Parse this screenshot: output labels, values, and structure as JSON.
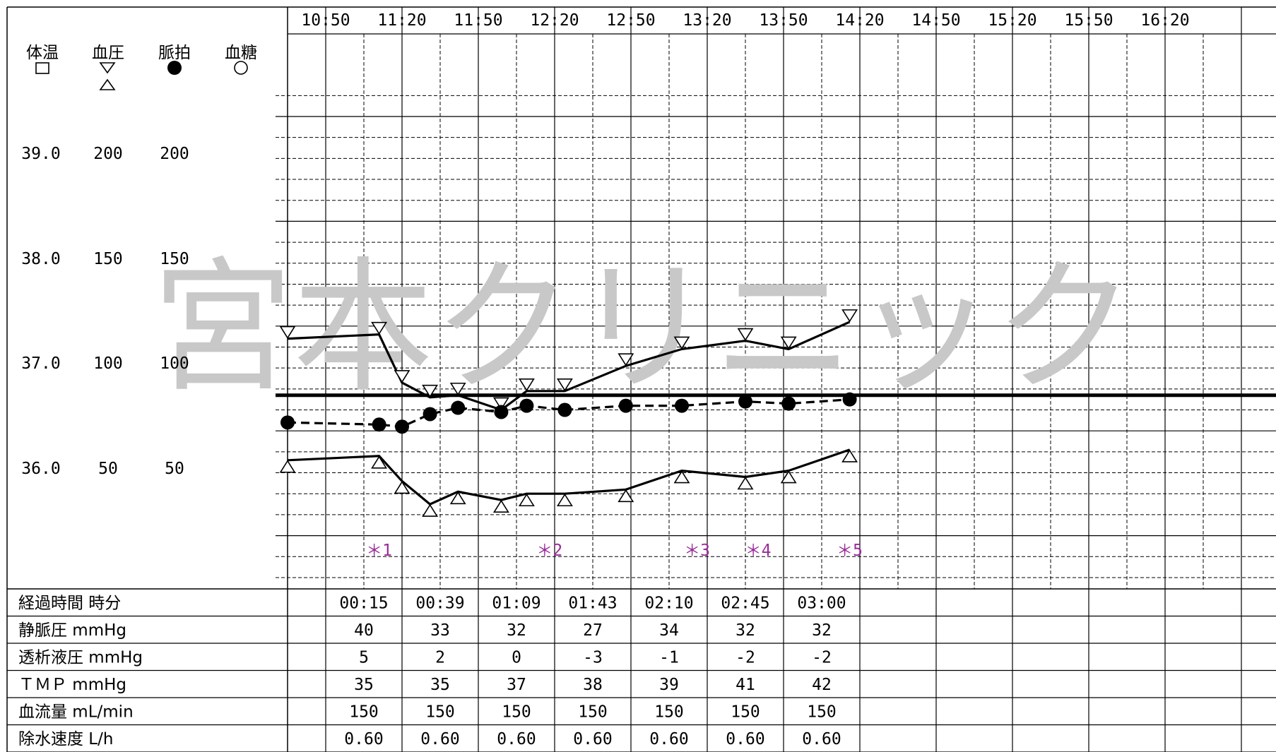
{
  "watermark": "宮本クリニック",
  "legend": [
    {
      "label": "体温",
      "symbol": "square-open-icon"
    },
    {
      "label": "血圧",
      "symbol": "triangle-down-and-up-open-icon"
    },
    {
      "label": "脈拍",
      "symbol": "circle-filled-icon"
    },
    {
      "label": "血糖",
      "symbol": "circle-open-icon"
    }
  ],
  "scale_labels": [
    {
      "temp": "39.0",
      "bp": "200",
      "pulse": "200"
    },
    {
      "temp": "38.0",
      "bp": "150",
      "pulse": "150"
    },
    {
      "temp": "37.0",
      "bp": "100",
      "pulse": "100"
    },
    {
      "temp": "36.0",
      "bp": "50",
      "pulse": "50"
    }
  ],
  "time_labels": [
    "10:50",
    "11:20",
    "11:50",
    "12:20",
    "12:50",
    "13:20",
    "13:50",
    "14:20",
    "14:50",
    "15:20",
    "15:50",
    "16:20"
  ],
  "chart_data": {
    "type": "line",
    "x_unit": "minutes after 10:20",
    "y_unit": "mmHg / bpm",
    "ylim": [
      0,
      250
    ],
    "reference_line": {
      "value": 92
    },
    "series": [
      {
        "name": "血圧",
        "style": "solid",
        "marker": "triangle-down",
        "x": [
          0,
          36,
          45,
          56,
          67,
          84,
          94,
          109,
          133,
          155,
          180,
          197,
          221
        ],
        "y": [
          119,
          121,
          98,
          91,
          92,
          85,
          94,
          94,
          106,
          114,
          118,
          114,
          127
        ]
      },
      {
        "name": "血圧",
        "style": "solid",
        "marker": "triangle-up",
        "x": [
          0,
          36,
          45,
          56,
          67,
          84,
          94,
          109,
          133,
          155,
          180,
          197,
          221
        ],
        "y": [
          61,
          63,
          51,
          40,
          46,
          42,
          45,
          45,
          47,
          56,
          53,
          56,
          66
        ]
      },
      {
        "name": "脈拍",
        "style": "dashed",
        "marker": "circle-filled",
        "x": [
          0,
          36,
          45,
          56,
          67,
          84,
          94,
          109,
          133,
          155,
          180,
          197,
          221
        ],
        "y": [
          79,
          78,
          77,
          83,
          86,
          84,
          87,
          85,
          87,
          87,
          89,
          88,
          90
        ]
      }
    ],
    "events": [
      {
        "label": "＊1",
        "x": 36
      },
      {
        "label": "＊2",
        "x": 103
      },
      {
        "label": "＊3",
        "x": 161
      },
      {
        "label": "＊4",
        "x": 185
      },
      {
        "label": "＊5",
        "x": 221
      }
    ]
  },
  "table": {
    "columns": [
      "00:15",
      "00:39",
      "01:09",
      "01:43",
      "02:10",
      "02:45",
      "03:00"
    ],
    "rows": [
      {
        "label": "経過時間 時分",
        "values": [
          "00:15",
          "00:39",
          "01:09",
          "01:43",
          "02:10",
          "02:45",
          "03:00"
        ]
      },
      {
        "label": "静脈圧 mmHg",
        "values": [
          "40",
          "33",
          "32",
          "27",
          "34",
          "32",
          "32"
        ]
      },
      {
        "label": "透析液圧 mmHg",
        "values": [
          "5",
          "2",
          "0",
          "-3",
          "-1",
          "-2",
          "-2"
        ]
      },
      {
        "label": "ＴＭＰ mmHg",
        "values": [
          "35",
          "35",
          "37",
          "38",
          "39",
          "41",
          "42"
        ]
      },
      {
        "label": "血流量 mL/min",
        "values": [
          "150",
          "150",
          "150",
          "150",
          "150",
          "150",
          "150"
        ]
      },
      {
        "label": "除水速度 L/h",
        "values": [
          "0.60",
          "0.60",
          "0.60",
          "0.60",
          "0.60",
          "0.60",
          "0.60"
        ]
      }
    ]
  },
  "colors": {
    "grid": "#000000",
    "event": "#9a2b9a",
    "watermark": "#c8c8c8",
    "line": "#000000"
  }
}
